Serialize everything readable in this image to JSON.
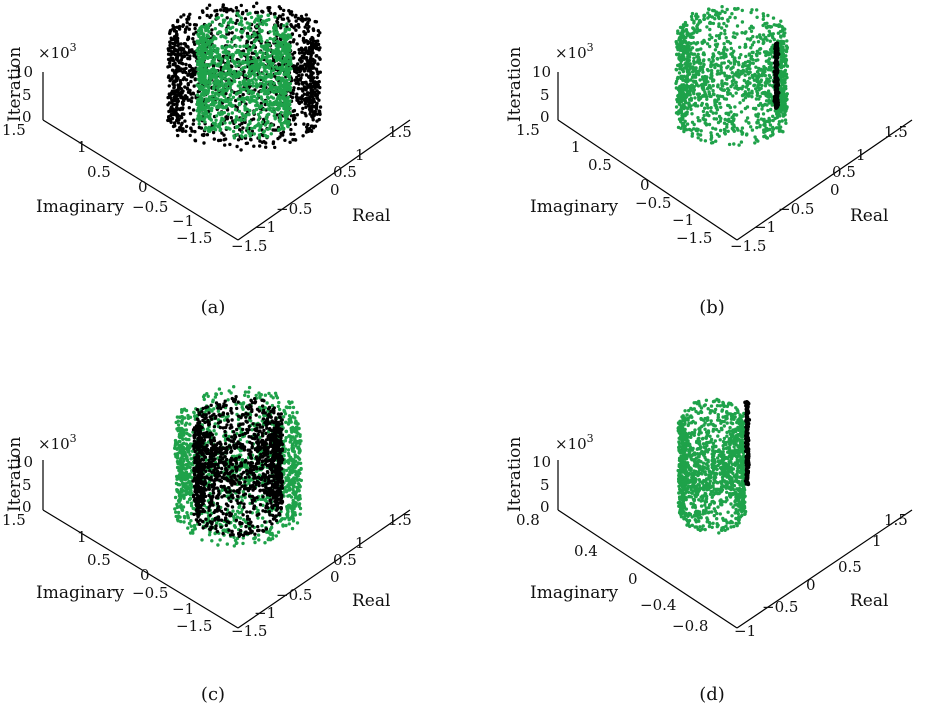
{
  "figure": {
    "panels": [
      {
        "caption": "(a)",
        "z_label": "Iteration",
        "z_exponent_base": "×10",
        "z_exponent_power": "3",
        "real_label": "Real",
        "imag_label": "Imaginary",
        "real_ticks": [
          "1.5",
          "1",
          "0.5",
          "0",
          "−0.5",
          "−1",
          "−1.5"
        ],
        "imag_ticks": [
          "1.5",
          "1",
          "0.5",
          "0",
          "−0.5",
          "−1",
          "−1.5"
        ],
        "z_ticks": [
          "10",
          "5",
          "0"
        ]
      },
      {
        "caption": "(b)",
        "z_label": "Iteration",
        "z_exponent_base": "×10",
        "z_exponent_power": "3",
        "real_label": "Real",
        "imag_label": "Imaginary",
        "real_ticks": [
          "1.5",
          "1",
          "0.5",
          "0",
          "−0.5",
          "−1",
          "−1.5"
        ],
        "imag_ticks": [
          "1.5",
          "1",
          "0.5",
          "0",
          "−0.5",
          "−1",
          "−1.5"
        ],
        "z_ticks": [
          "10",
          "5",
          "0"
        ]
      },
      {
        "caption": "(c)",
        "z_label": "Iteration",
        "z_exponent_base": "×10",
        "z_exponent_power": "3",
        "real_label": "Real",
        "imag_label": "Imaginary",
        "real_ticks": [
          "1.5",
          "1",
          "0.5",
          "0",
          "−0.5",
          "−1",
          "−1.5"
        ],
        "imag_ticks": [
          "1.5",
          "1",
          "0.5",
          "0",
          "−0.5",
          "−1",
          "−1.5"
        ],
        "z_ticks": [
          "10",
          "5",
          "0"
        ]
      },
      {
        "caption": "(d)",
        "z_label": "Iteration",
        "z_exponent_base": "×10",
        "z_exponent_power": "3",
        "real_label": "Real",
        "imag_label": "Imaginary",
        "real_ticks": [
          "1.5",
          "1",
          "0.5",
          "0",
          "−0.5",
          "−1"
        ],
        "imag_ticks": [
          "0.8",
          "0.4",
          "0",
          "−0.4",
          "−0.8"
        ],
        "z_ticks": [
          "10",
          "5",
          "0"
        ]
      }
    ]
  },
  "chart_data": [
    {
      "type": "scatter",
      "projection": "3d",
      "xlabel": "Real",
      "ylabel": "Imaginary",
      "zlabel": "Iteration",
      "z_multiplier": "×10^3",
      "xlim": [
        -1.5,
        1.5
      ],
      "ylim": [
        -1.5,
        1.5
      ],
      "zlim": [
        0,
        10
      ],
      "series": [
        {
          "color": "#000000",
          "shape": "ring-cylinder",
          "center": [
            0,
            0
          ],
          "radius": 1.3,
          "z_range": [
            0,
            10
          ]
        },
        {
          "color": "#1fa24a",
          "shape": "ring-cylinder",
          "center": [
            0,
            0
          ],
          "radius": 0.8,
          "z_range": [
            0,
            10
          ]
        }
      ]
    },
    {
      "type": "scatter",
      "projection": "3d",
      "xlabel": "Real",
      "ylabel": "Imaginary",
      "zlabel": "Iteration",
      "z_multiplier": "×10^3",
      "xlim": [
        -1.5,
        1.5
      ],
      "ylim": [
        -1.5,
        1.5
      ],
      "zlim": [
        0,
        10
      ],
      "series": [
        {
          "color": "#1fa24a",
          "shape": "ring-cylinder",
          "center": [
            0,
            0
          ],
          "radius": 1.0,
          "z_range": [
            0,
            10
          ]
        },
        {
          "color": "#000000",
          "shape": "converging-trail",
          "point": [
            1.0,
            -0.2
          ],
          "z_range": [
            3,
            10
          ]
        }
      ]
    },
    {
      "type": "scatter",
      "projection": "3d",
      "xlabel": "Real",
      "ylabel": "Imaginary",
      "zlabel": "Iteration",
      "z_multiplier": "×10^3",
      "xlim": [
        -1.5,
        1.5
      ],
      "ylim": [
        -1.5,
        1.5
      ],
      "zlim": [
        0,
        10
      ],
      "series": [
        {
          "color": "#1fa24a",
          "shape": "ring-cylinder",
          "center": [
            0,
            0
          ],
          "radius": 1.2,
          "z_range": [
            0,
            10
          ]
        },
        {
          "color": "#000000",
          "shape": "ring-cylinder",
          "center": [
            0,
            0
          ],
          "radius": 0.85,
          "z_range": [
            0,
            10
          ]
        }
      ]
    },
    {
      "type": "scatter",
      "projection": "3d",
      "xlabel": "Real",
      "ylabel": "Imaginary",
      "zlabel": "Iteration",
      "z_multiplier": "×10^3",
      "xlim": [
        -1,
        1.5
      ],
      "ylim": [
        -0.8,
        0.8
      ],
      "zlim": [
        0,
        10
      ],
      "series": [
        {
          "color": "#1fa24a",
          "shape": "ring-cylinder",
          "center": [
            0,
            0
          ],
          "radius": 0.7,
          "z_range": [
            0,
            10
          ]
        },
        {
          "color": "#000000",
          "shape": "converging-trail",
          "point": [
            1.0,
            -0.1
          ],
          "z_range": [
            5,
            14
          ]
        }
      ]
    }
  ]
}
